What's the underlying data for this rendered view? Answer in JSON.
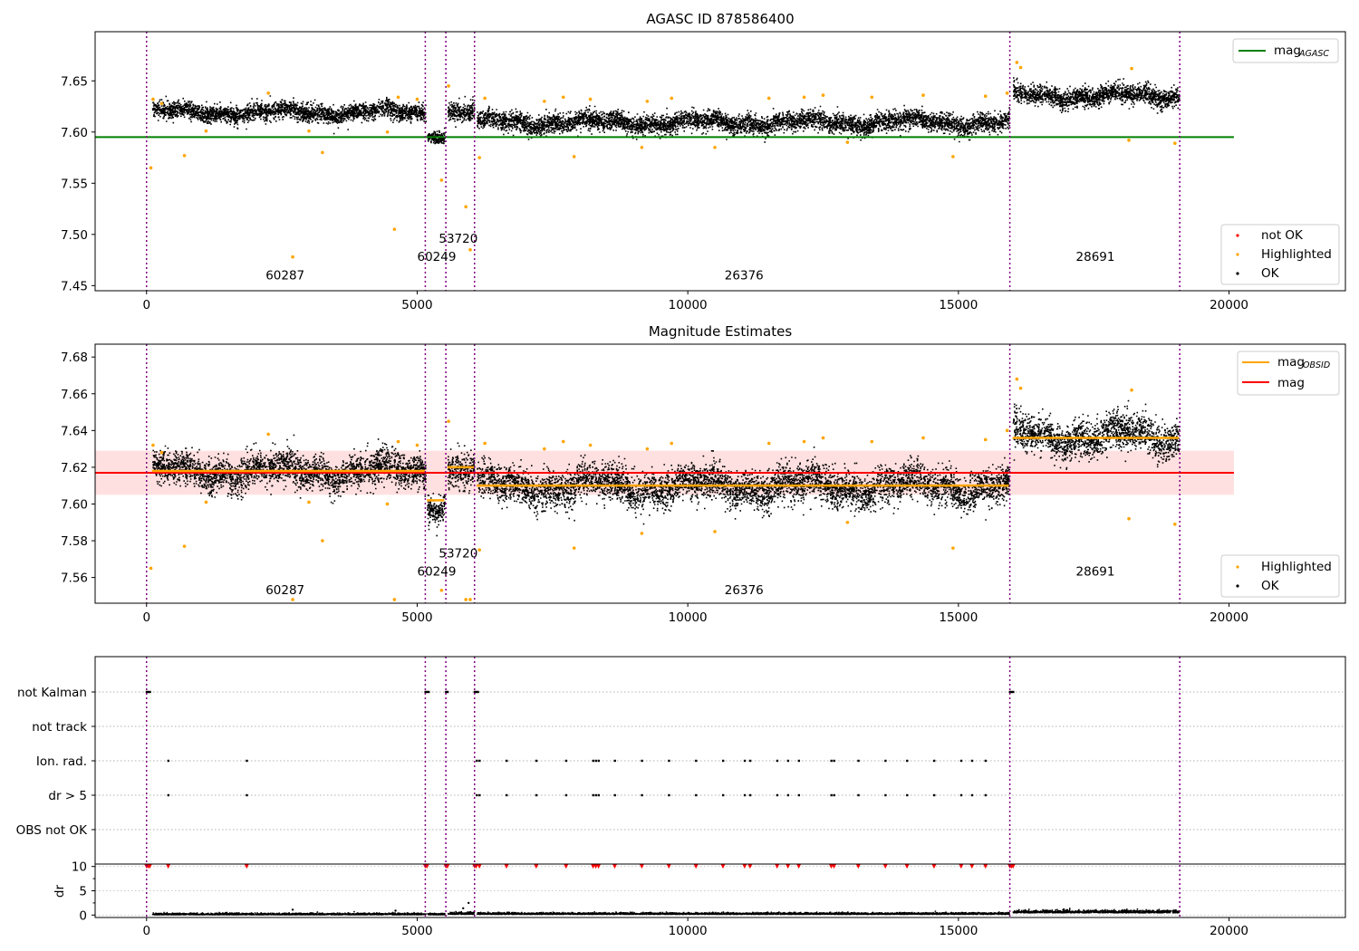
{
  "chart_data": [
    {
      "type": "scatter",
      "title": "AGASC ID 878586400",
      "xlim": [
        -950,
        22150
      ],
      "ylim": [
        7.445,
        7.698
      ],
      "x_ticks": [
        0,
        5000,
        10000,
        15000,
        20000
      ],
      "x_tick_labels": [
        "0",
        "5000",
        "10000",
        "15000",
        "20000"
      ],
      "y_ticks": [
        7.45,
        7.5,
        7.55,
        7.6,
        7.65
      ],
      "y_tick_labels": [
        "7.45",
        "7.50",
        "7.55",
        "7.60",
        "7.65"
      ],
      "obsid_boundaries": [
        0,
        5150,
        5530,
        6060,
        15950,
        19090
      ],
      "obsid_labels": [
        {
          "text": "60287",
          "x": 2560,
          "y": 7.456
        },
        {
          "text": "60249",
          "x": 5360,
          "y": 7.474
        },
        {
          "text": "53720",
          "x": 5760,
          "y": 7.492
        },
        {
          "text": "26376",
          "x": 11040,
          "y": 7.456
        },
        {
          "text": "28691",
          "x": 17530,
          "y": 7.474
        }
      ],
      "mag_agasc": {
        "value": 7.595,
        "x_range": [
          -950,
          20090
        ],
        "color": "#008000"
      },
      "segments": [
        {
          "x": [
            100,
            5150
          ],
          "center": 7.62,
          "spread": 0.008
        },
        {
          "x": [
            5180,
            5500
          ],
          "center": 7.598,
          "spread": 0.006
        },
        {
          "x": [
            5560,
            6050
          ],
          "center": 7.62,
          "spread": 0.009
        },
        {
          "x": [
            6100,
            15930
          ],
          "center": 7.61,
          "spread": 0.009
        },
        {
          "x": [
            16000,
            19070
          ],
          "center": 7.636,
          "spread": 0.009
        }
      ],
      "highlighted_points": [
        [
          80,
          7.565
        ],
        [
          120,
          7.632
        ],
        [
          280,
          7.628
        ],
        [
          700,
          7.577
        ],
        [
          1100,
          7.601
        ],
        [
          2250,
          7.638
        ],
        [
          2700,
          7.478
        ],
        [
          3000,
          7.601
        ],
        [
          3250,
          7.58
        ],
        [
          4450,
          7.6
        ],
        [
          4580,
          7.505
        ],
        [
          4650,
          7.634
        ],
        [
          5000,
          7.632
        ],
        [
          5450,
          7.553
        ],
        [
          5580,
          7.645
        ],
        [
          5900,
          7.527
        ],
        [
          5980,
          7.485
        ],
        [
          6150,
          7.575
        ],
        [
          6250,
          7.633
        ],
        [
          7350,
          7.63
        ],
        [
          7700,
          7.634
        ],
        [
          7900,
          7.576
        ],
        [
          8200,
          7.632
        ],
        [
          9150,
          7.585
        ],
        [
          9250,
          7.63
        ],
        [
          9700,
          7.633
        ],
        [
          10500,
          7.585
        ],
        [
          11500,
          7.633
        ],
        [
          12150,
          7.634
        ],
        [
          12500,
          7.636
        ],
        [
          12950,
          7.59
        ],
        [
          13400,
          7.634
        ],
        [
          14350,
          7.636
        ],
        [
          14900,
          7.576
        ],
        [
          15500,
          7.635
        ],
        [
          15900,
          7.638
        ],
        [
          16080,
          7.668
        ],
        [
          16150,
          7.663
        ],
        [
          18150,
          7.592
        ],
        [
          18200,
          7.662
        ],
        [
          19000,
          7.589
        ]
      ],
      "legend": [
        {
          "label": "not OK",
          "marker": "dot",
          "color": "#ff0000"
        },
        {
          "label": "Highlighted",
          "marker": "dot",
          "color": "#ffa500"
        },
        {
          "label": "OK",
          "marker": "dot",
          "color": "#000000"
        }
      ],
      "line_legend": [
        {
          "label": "mag",
          "sub": "AGASC",
          "color": "#008000"
        }
      ]
    },
    {
      "type": "scatter",
      "title": "Magnitude Estimates",
      "xlim": [
        -950,
        22150
      ],
      "ylim": [
        7.546,
        7.687
      ],
      "x_ticks": [
        0,
        5000,
        10000,
        15000,
        20000
      ],
      "x_tick_labels": [
        "0",
        "5000",
        "10000",
        "15000",
        "20000"
      ],
      "y_ticks": [
        7.56,
        7.58,
        7.6,
        7.62,
        7.64,
        7.66,
        7.68
      ],
      "y_tick_labels": [
        "7.56",
        "7.58",
        "7.60",
        "7.62",
        "7.64",
        "7.66",
        "7.68"
      ],
      "obsid_boundaries": [
        0,
        5150,
        5530,
        6060,
        15950,
        19090
      ],
      "obsid_labels": [
        {
          "text": "60287",
          "x": 2560,
          "y": 7.551
        },
        {
          "text": "60249",
          "x": 5360,
          "y": 7.561
        },
        {
          "text": "53720",
          "x": 5760,
          "y": 7.571
        },
        {
          "text": "26376",
          "x": 11040,
          "y": 7.551
        },
        {
          "text": "28691",
          "x": 17530,
          "y": 7.561
        }
      ],
      "mag": {
        "value": 7.617,
        "band": [
          7.605,
          7.629
        ],
        "x_range": [
          -950,
          20090
        ],
        "color": "#ff0000"
      },
      "mag_obsid": [
        {
          "x": [
            100,
            5150
          ],
          "value": 7.618
        },
        {
          "x": [
            5180,
            5500
          ],
          "value": 7.602
        },
        {
          "x": [
            5560,
            6050
          ],
          "value": 7.62
        },
        {
          "x": [
            6100,
            15930
          ],
          "value": 7.61
        },
        {
          "x": [
            16000,
            19070
          ],
          "value": 7.636
        }
      ],
      "segments": [
        {
          "x": [
            100,
            5150
          ],
          "center": 7.618,
          "spread": 0.009
        },
        {
          "x": [
            5180,
            5500
          ],
          "center": 7.6,
          "spread": 0.007
        },
        {
          "x": [
            5560,
            6050
          ],
          "center": 7.619,
          "spread": 0.01
        },
        {
          "x": [
            6100,
            15930
          ],
          "center": 7.61,
          "spread": 0.01
        },
        {
          "x": [
            16000,
            19070
          ],
          "center": 7.637,
          "spread": 0.01
        }
      ],
      "highlighted_points": [
        [
          80,
          7.565
        ],
        [
          120,
          7.632
        ],
        [
          280,
          7.628
        ],
        [
          700,
          7.577
        ],
        [
          1100,
          7.601
        ],
        [
          2250,
          7.638
        ],
        [
          2700,
          7.548
        ],
        [
          3000,
          7.601
        ],
        [
          3250,
          7.58
        ],
        [
          4450,
          7.6
        ],
        [
          4580,
          7.548
        ],
        [
          4650,
          7.634
        ],
        [
          5000,
          7.632
        ],
        [
          5450,
          7.553
        ],
        [
          5580,
          7.645
        ],
        [
          5900,
          7.548
        ],
        [
          5980,
          7.548
        ],
        [
          6150,
          7.575
        ],
        [
          6250,
          7.633
        ],
        [
          7350,
          7.63
        ],
        [
          7700,
          7.634
        ],
        [
          7900,
          7.576
        ],
        [
          8200,
          7.632
        ],
        [
          9150,
          7.584
        ],
        [
          9250,
          7.63
        ],
        [
          9700,
          7.633
        ],
        [
          10500,
          7.585
        ],
        [
          11500,
          7.633
        ],
        [
          12150,
          7.634
        ],
        [
          12500,
          7.636
        ],
        [
          12950,
          7.59
        ],
        [
          13400,
          7.634
        ],
        [
          14350,
          7.636
        ],
        [
          14900,
          7.576
        ],
        [
          15500,
          7.635
        ],
        [
          15900,
          7.64
        ],
        [
          16080,
          7.668
        ],
        [
          16150,
          7.663
        ],
        [
          18150,
          7.592
        ],
        [
          18200,
          7.662
        ],
        [
          19000,
          7.589
        ]
      ],
      "legend": [
        {
          "label": "Highlighted",
          "marker": "dot",
          "color": "#ffa500"
        },
        {
          "label": "OK",
          "marker": "dot",
          "color": "#000000"
        }
      ],
      "line_legend": [
        {
          "label": "mag",
          "sub": "OBSID",
          "color": "#ffa500"
        },
        {
          "label": "mag",
          "sub": "",
          "color": "#ff0000"
        }
      ]
    },
    {
      "type": "scatter",
      "title": "",
      "xlim": [
        -950,
        22150
      ],
      "flag_rows": [
        "not Kalman",
        "not track",
        "Ion. rad.",
        "dr > 5",
        "OBS not OK"
      ],
      "flag_x": {
        "not Kalman": [
          0,
          30,
          60,
          5150,
          5180,
          5210,
          5530,
          5560,
          6060,
          6090,
          6120,
          15950,
          15980,
          16010
        ],
        "not track": [],
        "Ion. rad.": [
          400,
          1850,
          6100,
          6150,
          6650,
          7200,
          7750,
          8250,
          8300,
          8350,
          8650,
          9150,
          9650,
          10150,
          10650,
          11050,
          11150,
          11650,
          11850,
          12050,
          12650,
          12700,
          13150,
          13650,
          14050,
          14550,
          15050,
          15250,
          15500
        ],
        "dr > 5": [
          400,
          1850,
          6100,
          6150,
          6650,
          7200,
          7750,
          8250,
          8300,
          8350,
          8650,
          9150,
          9650,
          10150,
          10650,
          11050,
          11150,
          11650,
          11850,
          12050,
          12650,
          12700,
          13150,
          13650,
          14050,
          14550,
          15050,
          15250,
          15500
        ],
        "OBS not OK": []
      },
      "dr": {
        "ylim": [
          -0.5,
          10.5
        ],
        "y_ticks": [
          0,
          5,
          10
        ],
        "y_tick_labels": [
          "0",
          "5",
          "10"
        ],
        "ylabel": "dr",
        "clipped_x": [
          0,
          30,
          60,
          400,
          1850,
          5150,
          5180,
          5530,
          5560,
          6060,
          6090,
          6150,
          6650,
          7200,
          7750,
          8250,
          8300,
          8350,
          8650,
          9150,
          9650,
          10150,
          10650,
          11050,
          11150,
          11650,
          11850,
          12050,
          12650,
          12700,
          13150,
          13650,
          14050,
          14550,
          15050,
          15250,
          15500,
          15950,
          15980,
          16010
        ],
        "segments": [
          {
            "x": [
              100,
              5150
            ],
            "center": 0.2,
            "spread": 0.15
          },
          {
            "x": [
              5180,
              5500
            ],
            "center": 0.2,
            "spread": 0.15
          },
          {
            "x": [
              5560,
              6050
            ],
            "center": 0.3,
            "spread": 0.2
          },
          {
            "x": [
              6100,
              15930
            ],
            "center": 0.3,
            "spread": 0.15
          },
          {
            "x": [
              16000,
              19070
            ],
            "center": 0.6,
            "spread": 0.25
          }
        ],
        "outliers": [
          [
            2700,
            1.1
          ],
          [
            5850,
            1.4
          ],
          [
            5950,
            2.5
          ],
          [
            4600,
            0.9
          ]
        ]
      },
      "x_ticks": [
        0,
        5000,
        10000,
        15000,
        20000
      ],
      "x_tick_labels": [
        "0",
        "5000",
        "10000",
        "15000",
        "20000"
      ],
      "obsid_boundaries": [
        0,
        5150,
        5530,
        6060,
        15950,
        19090
      ]
    }
  ]
}
